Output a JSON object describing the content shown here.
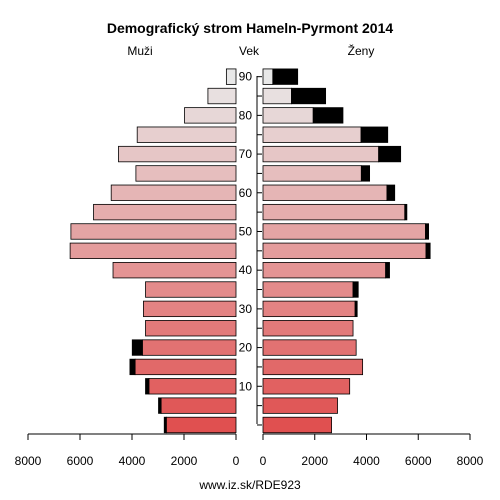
{
  "chart_data": {
    "type": "bar",
    "title": "Demografický strom Hameln-Pyrmont 2014",
    "left_label": "Muži",
    "center_label": "Vek",
    "right_label": "Ženy",
    "footer": "www.iz.sk/RDE923",
    "age_ticks": [
      "10",
      "20",
      "30",
      "40",
      "50",
      "60",
      "70",
      "80",
      "90"
    ],
    "x_ticks": [
      8000,
      6000,
      4000,
      2000,
      0
    ],
    "xlim": [
      0,
      8000
    ],
    "age_groups": [
      "0-4",
      "5-9",
      "10-14",
      "15-19",
      "20-24",
      "25-29",
      "30-34",
      "35-39",
      "40-44",
      "45-49",
      "50-54",
      "55-59",
      "60-64",
      "65-69",
      "70-74",
      "75-79",
      "80-84",
      "85-89",
      "90+"
    ],
    "men": {
      "base": [
        2680,
        2880,
        3350,
        3880,
        3600,
        3480,
        3560,
        3480,
        4730,
        6380,
        6350,
        5480,
        4800,
        3850,
        4520,
        3800,
        1980,
        1080,
        370
      ],
      "excess": [
        80,
        100,
        130,
        200,
        390,
        0,
        0,
        0,
        0,
        0,
        0,
        0,
        0,
        0,
        0,
        0,
        0,
        0,
        0
      ]
    },
    "women": {
      "base": [
        2650,
        2880,
        3350,
        3850,
        3600,
        3480,
        3560,
        3480,
        4740,
        6300,
        6280,
        5480,
        4790,
        3800,
        4470,
        3790,
        1940,
        1100,
        380
      ],
      "excess": [
        0,
        0,
        0,
        0,
        0,
        0,
        80,
        200,
        150,
        160,
        120,
        80,
        300,
        320,
        850,
        1030,
        1150,
        1320,
        960
      ]
    },
    "colors": {
      "bottom": "#e05050",
      "top": "#e8e8e8",
      "excess": "#000000",
      "outline": "#000000"
    }
  }
}
